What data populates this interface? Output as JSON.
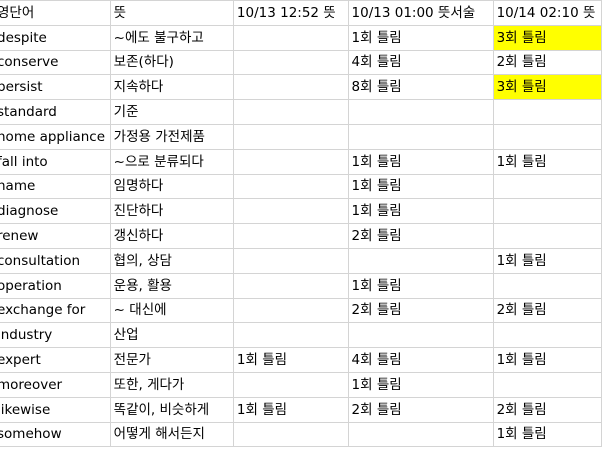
{
  "highlight_color": "#ffff00",
  "header": [
    "영단어",
    "뜻",
    "10/13 12:52 뜻",
    "10/13 01:00 뜻서술",
    "10/14 02:10 뜻"
  ],
  "rows": [
    {
      "cells": [
        "despite",
        "~에도 불구하고",
        "",
        "1회 틀림",
        "3회 틀림"
      ],
      "highlight": [
        false,
        false,
        false,
        false,
        true
      ]
    },
    {
      "cells": [
        "conserve",
        "보존(하다)",
        "",
        "4회 틀림",
        "2회 틀림"
      ],
      "highlight": [
        false,
        false,
        false,
        false,
        false
      ]
    },
    {
      "cells": [
        "persist",
        "지속하다",
        "",
        "8회 틀림",
        "3회 틀림"
      ],
      "highlight": [
        false,
        false,
        false,
        false,
        true
      ]
    },
    {
      "cells": [
        "standard",
        "기준",
        "",
        "",
        ""
      ],
      "highlight": [
        false,
        false,
        false,
        false,
        false
      ]
    },
    {
      "cells": [
        "home appliance",
        "가정용 가전제품",
        "",
        "",
        ""
      ],
      "highlight": [
        false,
        false,
        false,
        false,
        false
      ]
    },
    {
      "cells": [
        "fall into",
        "~으로 분류되다",
        "",
        "1회 틀림",
        "1회 틀림"
      ],
      "highlight": [
        false,
        false,
        false,
        false,
        false
      ]
    },
    {
      "cells": [
        "name",
        "임명하다",
        "",
        "1회 틀림",
        ""
      ],
      "highlight": [
        false,
        false,
        false,
        false,
        false
      ]
    },
    {
      "cells": [
        "diagnose",
        "진단하다",
        "",
        "1회 틀림",
        ""
      ],
      "highlight": [
        false,
        false,
        false,
        false,
        false
      ]
    },
    {
      "cells": [
        "renew",
        "갱신하다",
        "",
        "2회 틀림",
        ""
      ],
      "highlight": [
        false,
        false,
        false,
        false,
        false
      ]
    },
    {
      "cells": [
        "consultation",
        "협의, 상담",
        "",
        "",
        "1회 틀림"
      ],
      "highlight": [
        false,
        false,
        false,
        false,
        false
      ]
    },
    {
      "cells": [
        "operation",
        "운용, 활용",
        "",
        "1회 틀림",
        ""
      ],
      "highlight": [
        false,
        false,
        false,
        false,
        false
      ]
    },
    {
      "cells": [
        "exchange for",
        "~ 대신에",
        "",
        "2회 틀림",
        "2회 틀림"
      ],
      "highlight": [
        false,
        false,
        false,
        false,
        false
      ]
    },
    {
      "cells": [
        "industry",
        "산업",
        "",
        "",
        ""
      ],
      "highlight": [
        false,
        false,
        false,
        false,
        false
      ]
    },
    {
      "cells": [
        "expert",
        "전문가",
        "1회 틀림",
        "4회 틀림",
        "1회 틀림"
      ],
      "highlight": [
        false,
        false,
        false,
        false,
        false
      ]
    },
    {
      "cells": [
        "moreover",
        "또한, 게다가",
        "",
        "1회 틀림",
        ""
      ],
      "highlight": [
        false,
        false,
        false,
        false,
        false
      ]
    },
    {
      "cells": [
        "likewise",
        "똑같이, 비슷하게",
        "1회 틀림",
        "2회 틀림",
        "2회 틀림"
      ],
      "highlight": [
        false,
        false,
        false,
        false,
        false
      ]
    },
    {
      "cells": [
        "somehow",
        "어떻게 해서든지",
        "",
        "",
        "1회 틀림"
      ],
      "highlight": [
        false,
        false,
        false,
        false,
        false
      ]
    }
  ]
}
